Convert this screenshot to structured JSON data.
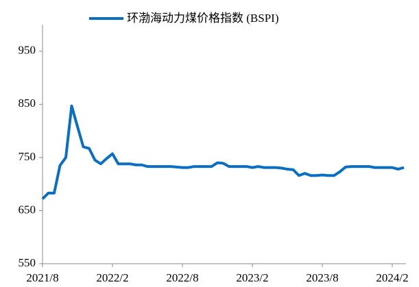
{
  "chart_data": {
    "type": "line",
    "series": [
      {
        "name": "环渤海动力煤价格指数 (BSPI)",
        "color": "#0a6fc2",
        "values": [
          672,
          683,
          683,
          735,
          750,
          847,
          808,
          770,
          767,
          745,
          738,
          748,
          757,
          738,
          738,
          738,
          736,
          736,
          733,
          733,
          733,
          733,
          733,
          732,
          731,
          731,
          733,
          733,
          733,
          733,
          740,
          739,
          733,
          733,
          733,
          733,
          731,
          733,
          731,
          731,
          731,
          730,
          728,
          727,
          716,
          720,
          716,
          716,
          717,
          716,
          716,
          723,
          732,
          733,
          733,
          733,
          733,
          731,
          731,
          731,
          731,
          728,
          731
        ]
      }
    ],
    "categories": [
      "2021/8",
      null,
      null,
      null,
      null,
      null,
      null,
      null,
      null,
      null,
      null,
      null,
      "2022/2",
      null,
      null,
      null,
      null,
      null,
      null,
      null,
      null,
      null,
      null,
      null,
      "2022/8",
      null,
      null,
      null,
      null,
      null,
      null,
      null,
      null,
      null,
      null,
      null,
      "2023/2",
      null,
      null,
      null,
      null,
      null,
      null,
      null,
      null,
      null,
      null,
      null,
      "2023/8",
      null,
      null,
      null,
      null,
      null,
      null,
      null,
      null,
      null,
      null,
      null,
      "2024/2",
      null,
      null
    ],
    "ylim": [
      550,
      1000
    ],
    "yticks": [
      550,
      650,
      750,
      850,
      950
    ]
  }
}
